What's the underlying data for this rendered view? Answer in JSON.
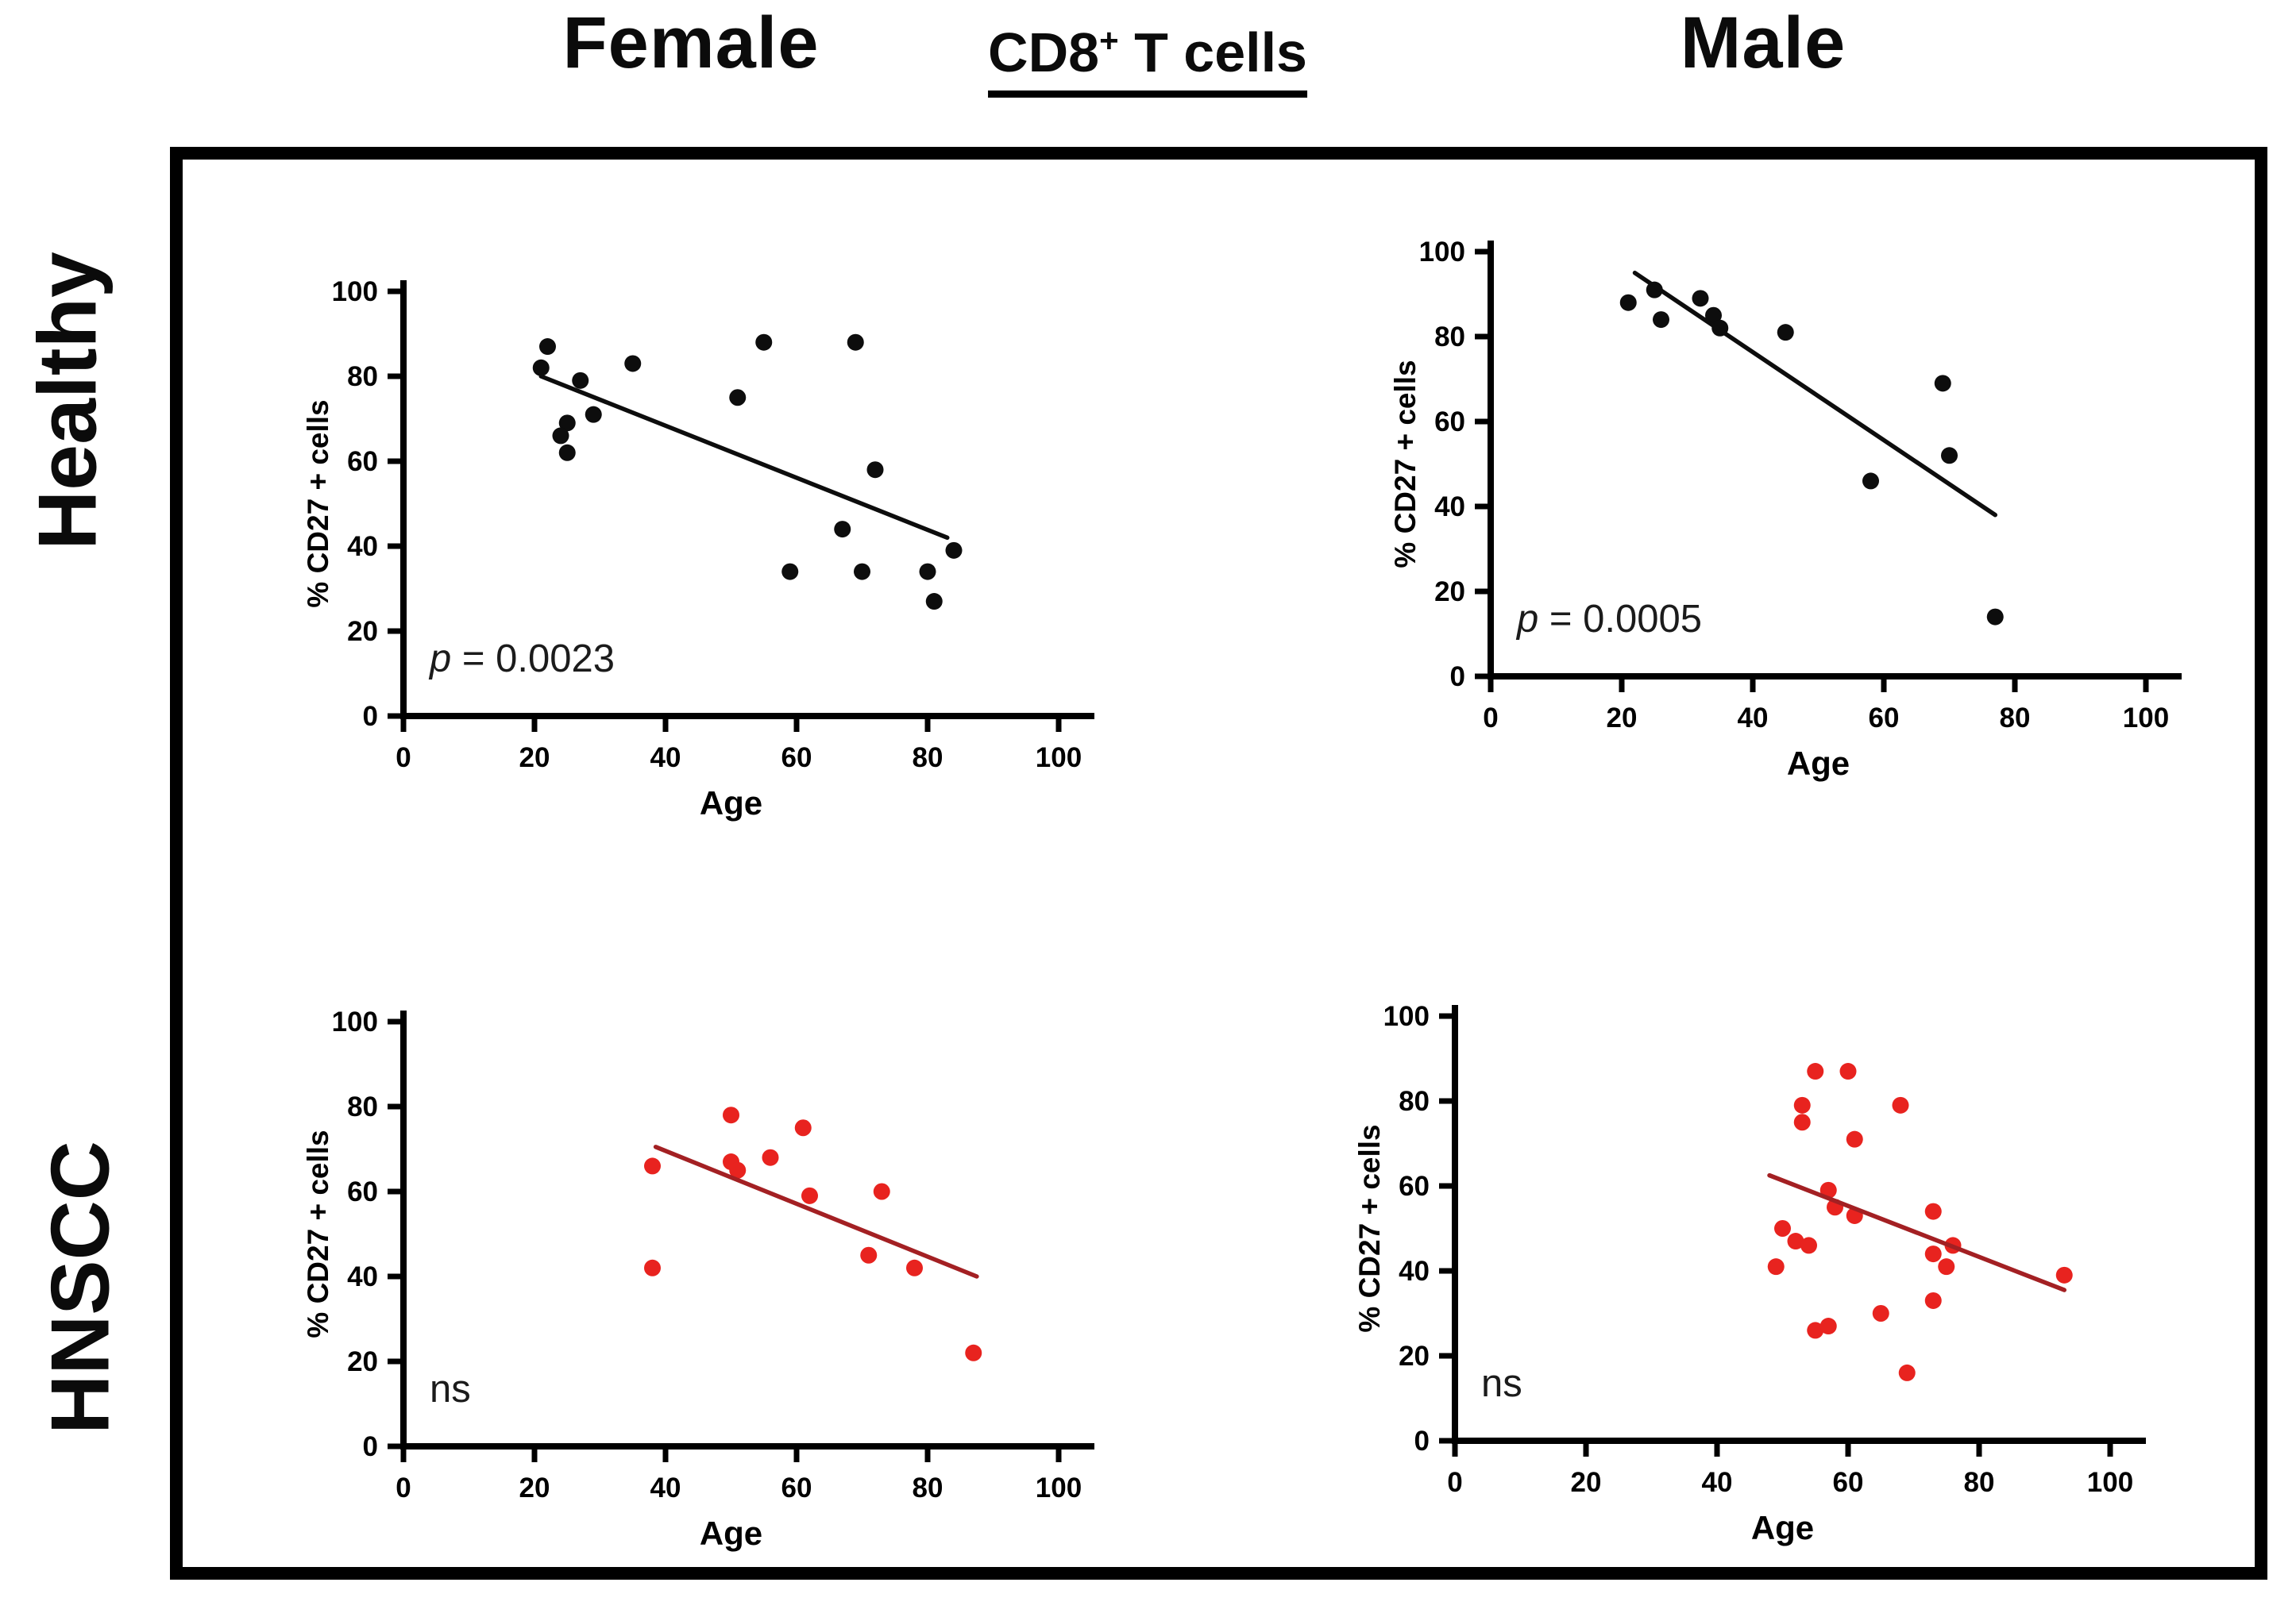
{
  "header": {
    "female": "Female",
    "male": "Male",
    "center_base": "CD8",
    "center_sup": "+",
    "center_rest": " T cells"
  },
  "rows": [
    {
      "label": "Healthy"
    },
    {
      "label": "HNSCC"
    }
  ],
  "colors": {
    "black_point": "#0d0d0d",
    "black_line": "#0d0d0d",
    "red_point": "#e8231f",
    "red_line": "#a32023",
    "axis": "#000000",
    "annotation_text": "#1b1b1b"
  },
  "chart_data": [
    {
      "type": "scatter",
      "group": "Healthy",
      "sex": "Female",
      "xlabel": "Age",
      "ylabel": "% CD27 + cells",
      "xlim": [
        0,
        100
      ],
      "ylim": [
        0,
        100
      ],
      "ticks": [
        0,
        20,
        40,
        60,
        80,
        100
      ],
      "grid": false,
      "point_color": "#0d0d0d",
      "line_color": "#0d0d0d",
      "annotation": {
        "italic": "p",
        "text": " = 0.0023"
      },
      "points": [
        [
          22,
          87
        ],
        [
          21,
          82
        ],
        [
          27,
          79
        ],
        [
          35,
          83
        ],
        [
          29,
          71
        ],
        [
          25,
          69
        ],
        [
          24,
          66
        ],
        [
          25,
          62
        ],
        [
          51,
          75
        ],
        [
          55,
          88
        ],
        [
          69,
          88
        ],
        [
          72,
          58
        ],
        [
          67,
          44
        ],
        [
          59,
          34
        ],
        [
          70,
          34
        ],
        [
          80,
          34
        ],
        [
          81,
          27
        ],
        [
          84,
          39
        ]
      ],
      "trend": [
        21,
        80,
        83,
        42
      ]
    },
    {
      "type": "scatter",
      "group": "Healthy",
      "sex": "Male",
      "xlabel": "Age",
      "ylabel": "% CD27 + cells",
      "xlim": [
        0,
        100
      ],
      "ylim": [
        0,
        100
      ],
      "ticks": [
        0,
        20,
        40,
        60,
        80,
        100
      ],
      "grid": false,
      "point_color": "#0d0d0d",
      "line_color": "#0d0d0d",
      "annotation": {
        "italic": "p",
        "text": " = 0.0005"
      },
      "points": [
        [
          21,
          88
        ],
        [
          25,
          91
        ],
        [
          26,
          84
        ],
        [
          32,
          89
        ],
        [
          34,
          85
        ],
        [
          35,
          82
        ],
        [
          45,
          81
        ],
        [
          69,
          69
        ],
        [
          58,
          46
        ],
        [
          70,
          52
        ],
        [
          77,
          14
        ]
      ],
      "trend": [
        22,
        95,
        77,
        38
      ]
    },
    {
      "type": "scatter",
      "group": "HNSCC",
      "sex": "Female",
      "xlabel": "Age",
      "ylabel": "% CD27 + cells",
      "xlim": [
        0,
        100
      ],
      "ylim": [
        0,
        100
      ],
      "ticks": [
        0,
        20,
        40,
        60,
        80,
        100
      ],
      "grid": false,
      "point_color": "#e8231f",
      "line_color": "#a32023",
      "annotation": {
        "italic": "",
        "text": "ns"
      },
      "points": [
        [
          38,
          66
        ],
        [
          38,
          42
        ],
        [
          50,
          78
        ],
        [
          50,
          67
        ],
        [
          51,
          65
        ],
        [
          56,
          68
        ],
        [
          61,
          75
        ],
        [
          62,
          59
        ],
        [
          73,
          60
        ],
        [
          71,
          45
        ],
        [
          78,
          42
        ],
        [
          87,
          22
        ]
      ],
      "trend": [
        38.5,
        70.5,
        87.5,
        40
      ]
    },
    {
      "type": "scatter",
      "group": "HNSCC",
      "sex": "Male",
      "xlabel": "Age",
      "ylabel": "% CD27 + cells",
      "xlim": [
        0,
        100
      ],
      "ylim": [
        0,
        100
      ],
      "ticks": [
        0,
        20,
        40,
        60,
        80,
        100
      ],
      "grid": false,
      "point_color": "#e8231f",
      "line_color": "#a32023",
      "annotation": {
        "italic": "",
        "text": "ns"
      },
      "points": [
        [
          55,
          87
        ],
        [
          60,
          87
        ],
        [
          53,
          79
        ],
        [
          53,
          75
        ],
        [
          68,
          79
        ],
        [
          61,
          71
        ],
        [
          57,
          59
        ],
        [
          58,
          55
        ],
        [
          61,
          53
        ],
        [
          50,
          50
        ],
        [
          52,
          47
        ],
        [
          54,
          46
        ],
        [
          49,
          41
        ],
        [
          73,
          54
        ],
        [
          73,
          44
        ],
        [
          76,
          46
        ],
        [
          75,
          41
        ],
        [
          73,
          33
        ],
        [
          65,
          30
        ],
        [
          55,
          26
        ],
        [
          57,
          27
        ],
        [
          69,
          16
        ],
        [
          93,
          39
        ]
      ],
      "trend": [
        48,
        62.5,
        93,
        35.5
      ]
    }
  ]
}
